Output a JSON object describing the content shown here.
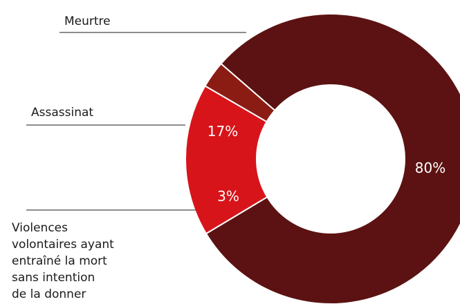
{
  "chart_data": {
    "type": "pie",
    "variant": "donut",
    "title": "",
    "slices": [
      {
        "label": "Meurtre",
        "value": 80,
        "display": "80%",
        "color": "#5c1212"
      },
      {
        "label": "Assassinat",
        "value": 17,
        "display": "17%",
        "color": "#d7141a"
      },
      {
        "label": "Violences volontaires ayant entraîné la mort sans intention de la donner",
        "value": 3,
        "display": "3%",
        "color": "#8b1c14",
        "label_lines": [
          "Violences",
          "volontaires ayant",
          "entraîné la mort",
          "sans intention",
          "de la donner"
        ]
      }
    ],
    "legend": "none (leader-line labels on left)"
  }
}
